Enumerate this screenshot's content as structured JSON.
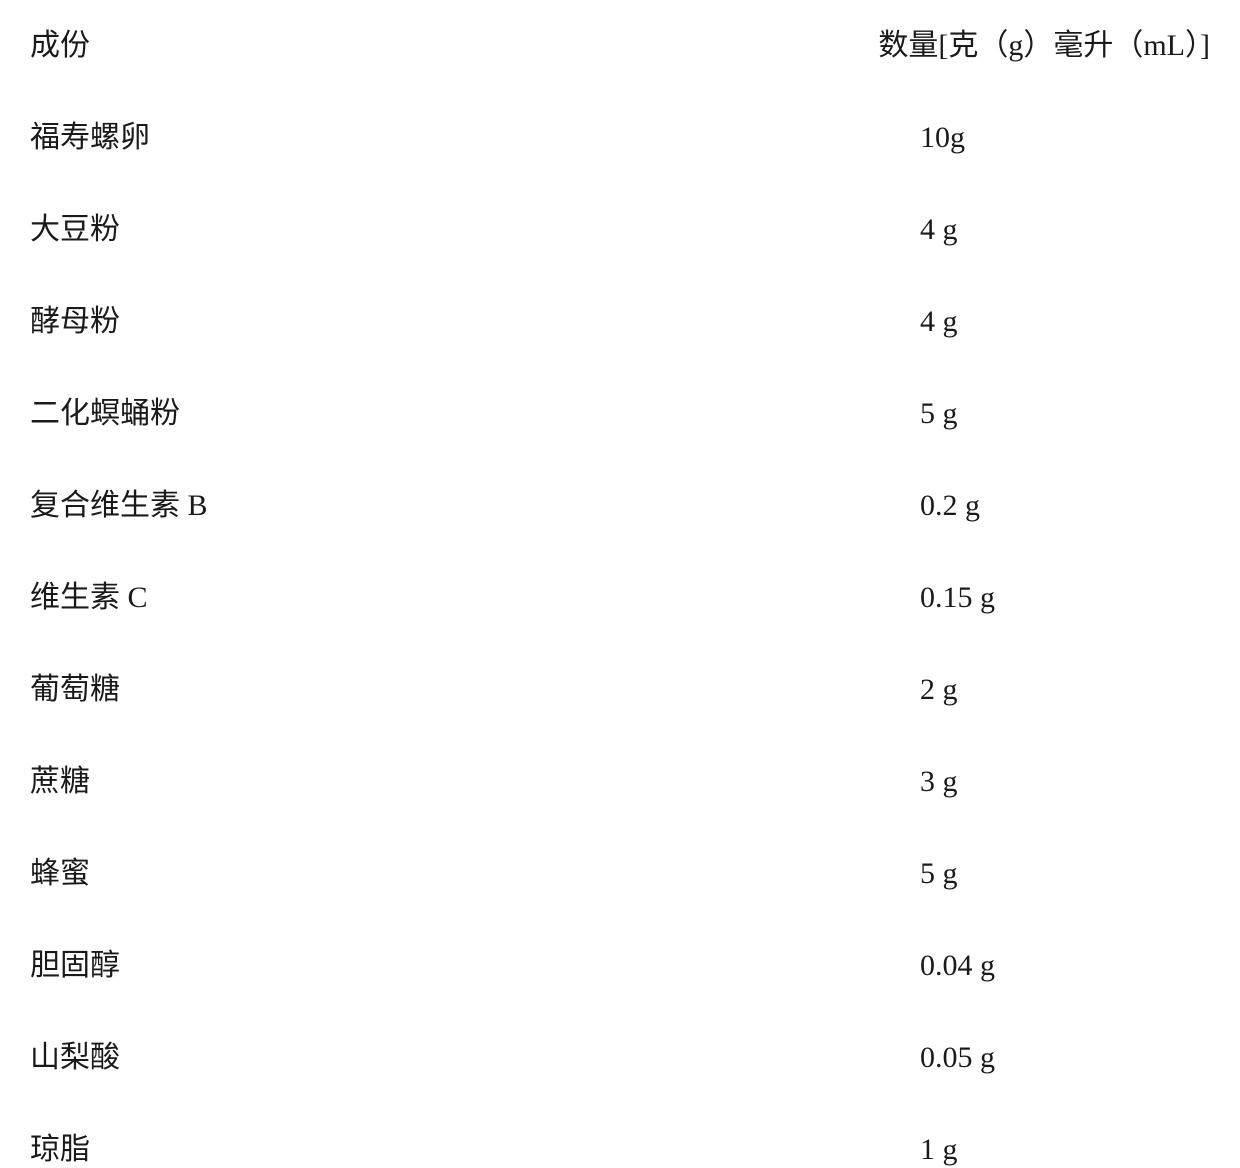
{
  "header": {
    "ingredient_label": "成份",
    "amount_label": "数量[克（g）毫升（mL）]"
  },
  "rows": [
    {
      "ingredient": "福寿螺卵",
      "amount": "10g"
    },
    {
      "ingredient": "大豆粉",
      "amount": "4 g"
    },
    {
      "ingredient": "酵母粉",
      "amount": "4 g"
    },
    {
      "ingredient": "二化螟蛹粉",
      "amount": "5 g"
    },
    {
      "ingredient": "复合维生素 B",
      "amount": "0.2 g"
    },
    {
      "ingredient": "维生素 C",
      "amount": "0.15 g"
    },
    {
      "ingredient": "葡萄糖",
      "amount": "2 g"
    },
    {
      "ingredient": "蔗糖",
      "amount": "3 g"
    },
    {
      "ingredient": "蜂蜜",
      "amount": "5 g"
    },
    {
      "ingredient": "胆固醇",
      "amount": "0.04 g"
    },
    {
      "ingredient": "山梨酸",
      "amount": "0.05 g"
    },
    {
      "ingredient": "琼脂",
      "amount": "1 g"
    }
  ],
  "style": {
    "background_color": "#ffffff",
    "text_color": "#1a1a1a",
    "font_family": "SimSun",
    "font_size": 30,
    "row_spacing": 48
  }
}
